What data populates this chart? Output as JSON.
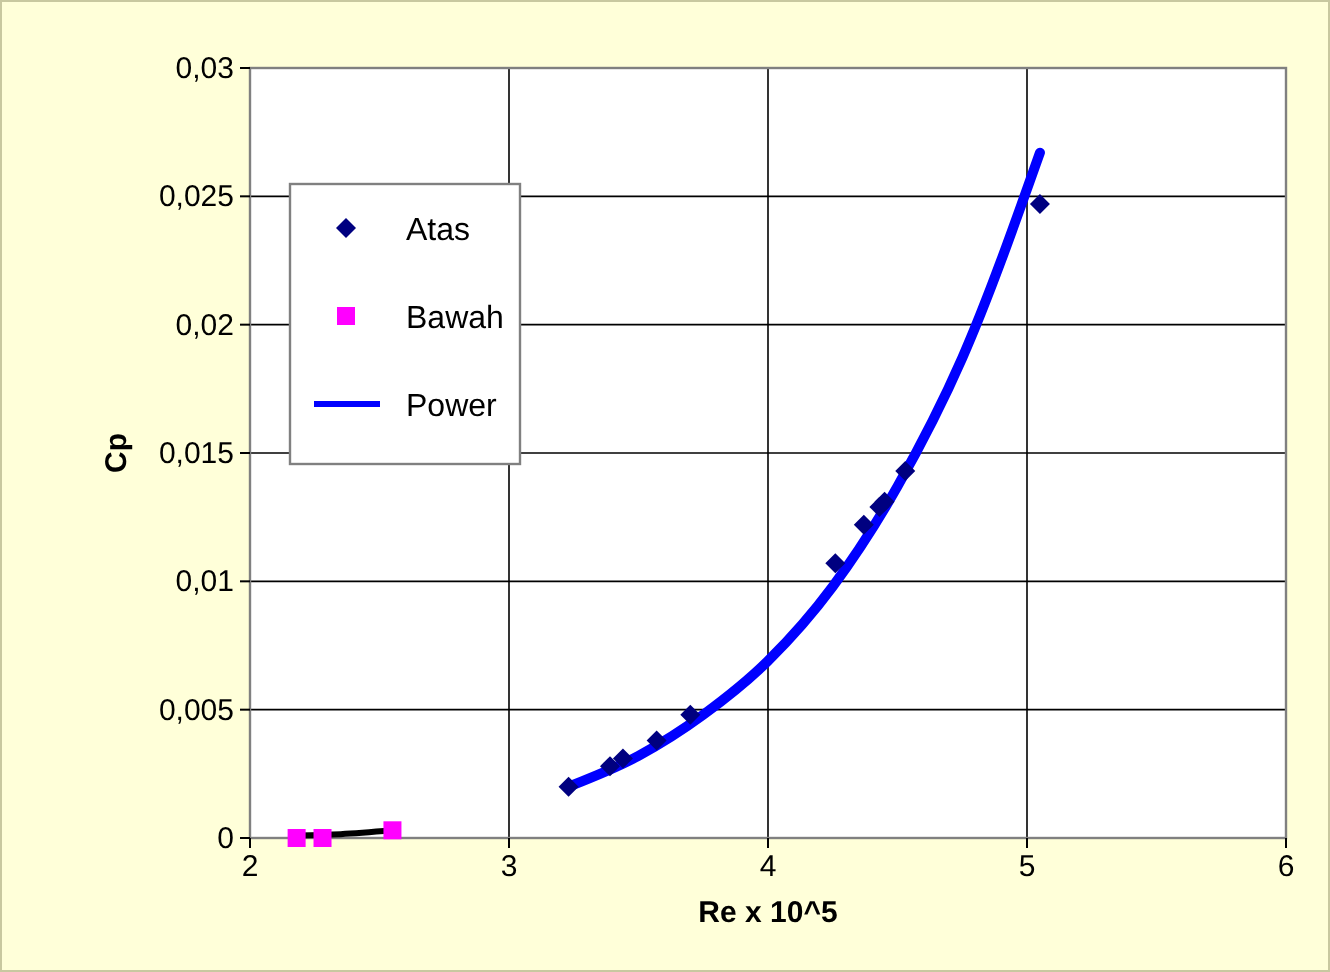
{
  "chart_data": {
    "type": "scatter",
    "xlabel": "Re x 10^5",
    "ylabel": "Cp",
    "xlim": [
      2,
      6
    ],
    "xticks": [
      2,
      3,
      4,
      5,
      6
    ],
    "ylim": [
      0,
      0.03
    ],
    "yticks": [
      {
        "value": 0,
        "label": "0"
      },
      {
        "value": 0.005,
        "label": "0,005"
      },
      {
        "value": 0.01,
        "label": "0,01"
      },
      {
        "value": 0.015,
        "label": "0,015"
      },
      {
        "value": 0.02,
        "label": "0,02"
      },
      {
        "value": 0.025,
        "label": "0,025"
      },
      {
        "value": 0.03,
        "label": "0,03"
      }
    ],
    "grid": true,
    "legend": "top left",
    "series": [
      {
        "name": "Atas",
        "marker": "diamond",
        "color": "#000080",
        "x": [
          3.23,
          3.39,
          3.44,
          3.57,
          3.7,
          4.26,
          4.37,
          4.43,
          4.45,
          4.53,
          5.05
        ],
        "values": [
          0.002,
          0.0028,
          0.0031,
          0.0038,
          0.0048,
          0.0107,
          0.0122,
          0.0129,
          0.0131,
          0.0143,
          0.0247
        ]
      },
      {
        "name": "Bawah",
        "marker": "square",
        "color": "#ff00ff",
        "x": [
          2.18,
          2.28,
          2.55
        ],
        "values": [
          0,
          0,
          0.0003
        ]
      },
      {
        "name": "Power",
        "type": "line",
        "marker": "none",
        "color": "#0000ff",
        "x": [
          3.23,
          3.5,
          3.75,
          4,
          4.25,
          4.5,
          4.75,
          5.05
        ],
        "values": [
          0.002,
          0.0032,
          0.0048,
          0.0069,
          0.0098,
          0.0137,
          0.0187,
          0.0267
        ]
      },
      {
        "type": "line",
        "marker": "none",
        "color": "#000000",
        "x": [
          2.18,
          2.35,
          2.55
        ],
        "values": [
          0.0001,
          0.00015,
          0.0003
        ]
      }
    ]
  }
}
